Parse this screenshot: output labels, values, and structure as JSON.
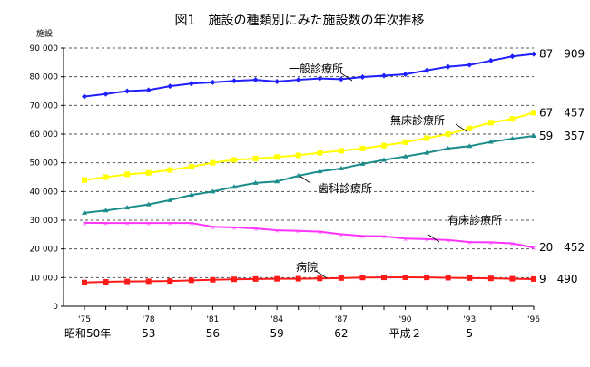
{
  "chart_data": {
    "type": "line",
    "title": "図1　施設の種類別にみた施設数の年次推移",
    "ylabel": "施設",
    "ylim": [
      0,
      90000
    ],
    "yticks": [
      "0",
      "10 000",
      "20 000",
      "30 000",
      "40 000",
      "50 000",
      "60 000",
      "70 000",
      "80 000",
      "90 000"
    ],
    "x": [
      1975,
      1976,
      1977,
      1978,
      1979,
      1980,
      1981,
      1982,
      1983,
      1984,
      1985,
      1986,
      1987,
      1988,
      1989,
      1990,
      1991,
      1992,
      1993,
      1994,
      1995,
      1996
    ],
    "xtick_labels": [
      "'75",
      "'78",
      "'81",
      "'84",
      "'87",
      "'90",
      "'93",
      "'96"
    ],
    "era_labels": [
      "昭和50年",
      "53",
      "56",
      "59",
      "62",
      "平成２",
      "5"
    ],
    "grid": true,
    "series": [
      {
        "name": "一般診療所",
        "color": "#1f1fff",
        "marker": "diamond",
        "end_label": "87　909",
        "values": [
          73114,
          73974,
          75010,
          75347,
          76705,
          77611,
          78030,
          78559,
          78902,
          78332,
          78927,
          79369,
          79134,
          79905,
          80352,
          80852,
          82200,
          83500,
          84100,
          85600,
          87069,
          87909
        ]
      },
      {
        "name": "無床診療所",
        "color": "#ffff00",
        "marker": "square",
        "end_label": "67　457",
        "values": [
          44000,
          45000,
          46000,
          46500,
          47500,
          48600,
          50000,
          51000,
          51500,
          52000,
          52600,
          53500,
          54200,
          55000,
          56000,
          57200,
          58600,
          60000,
          62000,
          64000,
          65300,
          67457
        ]
      },
      {
        "name": "歯科診療所",
        "color": "#1a8c8c",
        "marker": "triangle",
        "end_label": "59　357",
        "values": [
          32565,
          33400,
          34400,
          35500,
          37000,
          38800,
          40000,
          41600,
          43000,
          43500,
          45500,
          47000,
          48000,
          49600,
          51000,
          52200,
          53500,
          55000,
          55800,
          57300,
          58400,
          59357
        ]
      },
      {
        "name": "有床診療所",
        "color": "#ff33ff",
        "marker": "x",
        "end_label": "20　452",
        "values": [
          29100,
          29000,
          29000,
          29000,
          29000,
          29000,
          27700,
          27500,
          27100,
          26500,
          26300,
          26000,
          25100,
          24500,
          24400,
          23600,
          23400,
          23100,
          22400,
          22300,
          21900,
          20452
        ]
      },
      {
        "name": "病院",
        "color": "#ff1a1a",
        "marker": "square",
        "end_label": "9　490",
        "values": [
          8294,
          8527,
          8664,
          8733,
          8815,
          9055,
          9224,
          9403,
          9515,
          9574,
          9608,
          9699,
          9841,
          10034,
          10081,
          10096,
          10066,
          9963,
          9844,
          9731,
          9606,
          9490
        ]
      }
    ]
  }
}
